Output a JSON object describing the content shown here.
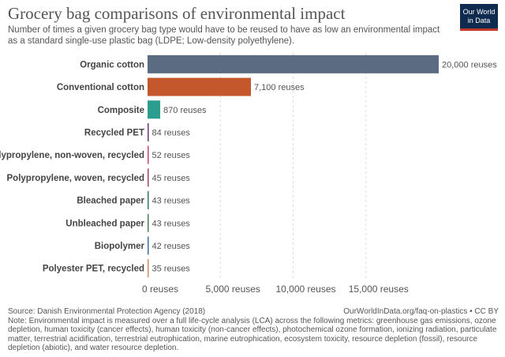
{
  "header": {
    "title": "Grocery bag comparisons of environmental impact",
    "subtitle": "Number of times a given grocery bag type would have to be reused to have as low an environmental impact as a standard single-use plastic bag (LDPE; Low-density polyethylene).",
    "logo_line1": "Our World",
    "logo_line2": "in Data"
  },
  "chart_data": {
    "type": "bar",
    "orientation": "horizontal",
    "categories": [
      "Organic cotton",
      "Conventional cotton",
      "Composite",
      "Recycled PET",
      "Polypropylene, non-woven, recycled",
      "Polypropylene, woven, recycled",
      "Bleached paper",
      "Unbleached paper",
      "Biopolymer",
      "Polyester PET, recycled"
    ],
    "values": [
      20000,
      7100,
      870,
      84,
      52,
      45,
      43,
      43,
      42,
      35
    ],
    "value_labels": [
      "20,000 reuses",
      "7,100 reuses",
      "870 reuses",
      "84 reuses",
      "52 reuses",
      "45 reuses",
      "43 reuses",
      "43 reuses",
      "42 reuses",
      "35 reuses"
    ],
    "colors": [
      "#5b6b82",
      "#c4572c",
      "#2b9e8f",
      "#6e3b7a",
      "#c7427a",
      "#a0406c",
      "#2a7f5a",
      "#4a7e5a",
      "#3f6fa0",
      "#d08a5a"
    ],
    "xlim": [
      0,
      20000
    ],
    "xticks": [
      0,
      5000,
      10000,
      15000
    ],
    "xtick_labels": [
      "0 reuses",
      "5,000 reuses",
      "10,000 reuses",
      "15,000 reuses"
    ],
    "title": "Grocery bag comparisons of environmental impact",
    "xlabel": "",
    "ylabel": ""
  },
  "footer": {
    "source": "Source: Danish Environmental Protection Agency (2018)",
    "license": "OurWorldInData.org/faq-on-plastics • CC BY",
    "note": "Note: Environmental impact is measured over a full life-cycle analysis (LCA) across the following metrics: greenhouse gas emissions, ozone depletion, human toxicity (cancer effects), human toxicity (non-cancer effects), photochemical ozone formation, ionizing radiation, particulate matter, terrestrial acidification, terrestrial eutrophication, marine eutrophication, ecosystem toxicity, resource depletion (fossil), resource depletion (abiotic), and water resource depletion."
  }
}
